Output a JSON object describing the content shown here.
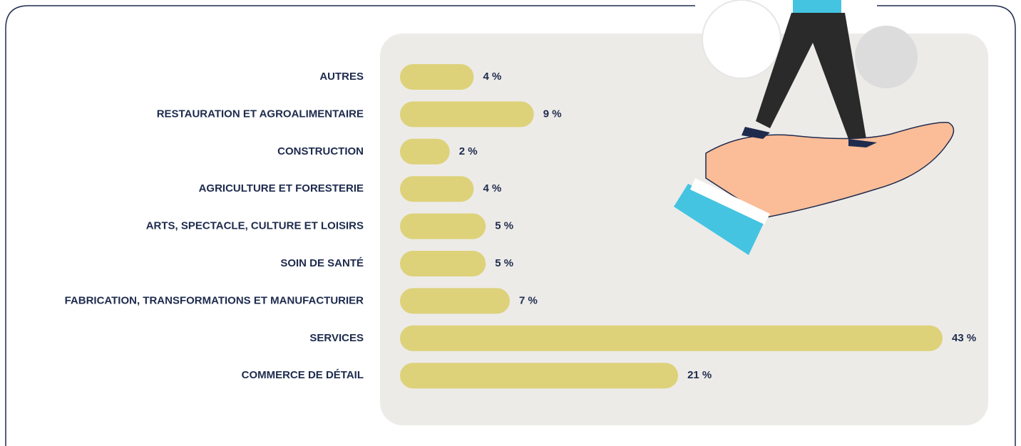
{
  "chart_data": {
    "type": "bar",
    "orientation": "horizontal",
    "categories": [
      "AUTRES",
      "RESTAURATION ET AGROALIMENTAIRE",
      "CONSTRUCTION",
      "AGRICULTURE ET FORESTERIE",
      "ARTS, SPECTACLE, CULTURE ET LOISIRS",
      "SOIN DE SANTÉ",
      "FABRICATION, TRANSFORMATIONS ET MANUFACTURIER",
      "SERVICES",
      "COMMERCE DE DÉTAIL"
    ],
    "values": [
      4,
      9,
      2,
      4,
      5,
      5,
      7,
      43,
      21
    ],
    "value_labels": [
      "4 %",
      "9 %",
      "2 %",
      "4 %",
      "5 %",
      "5 %",
      "7 %",
      "43 %",
      "21 %"
    ],
    "color": "#ddd27a"
  }
}
